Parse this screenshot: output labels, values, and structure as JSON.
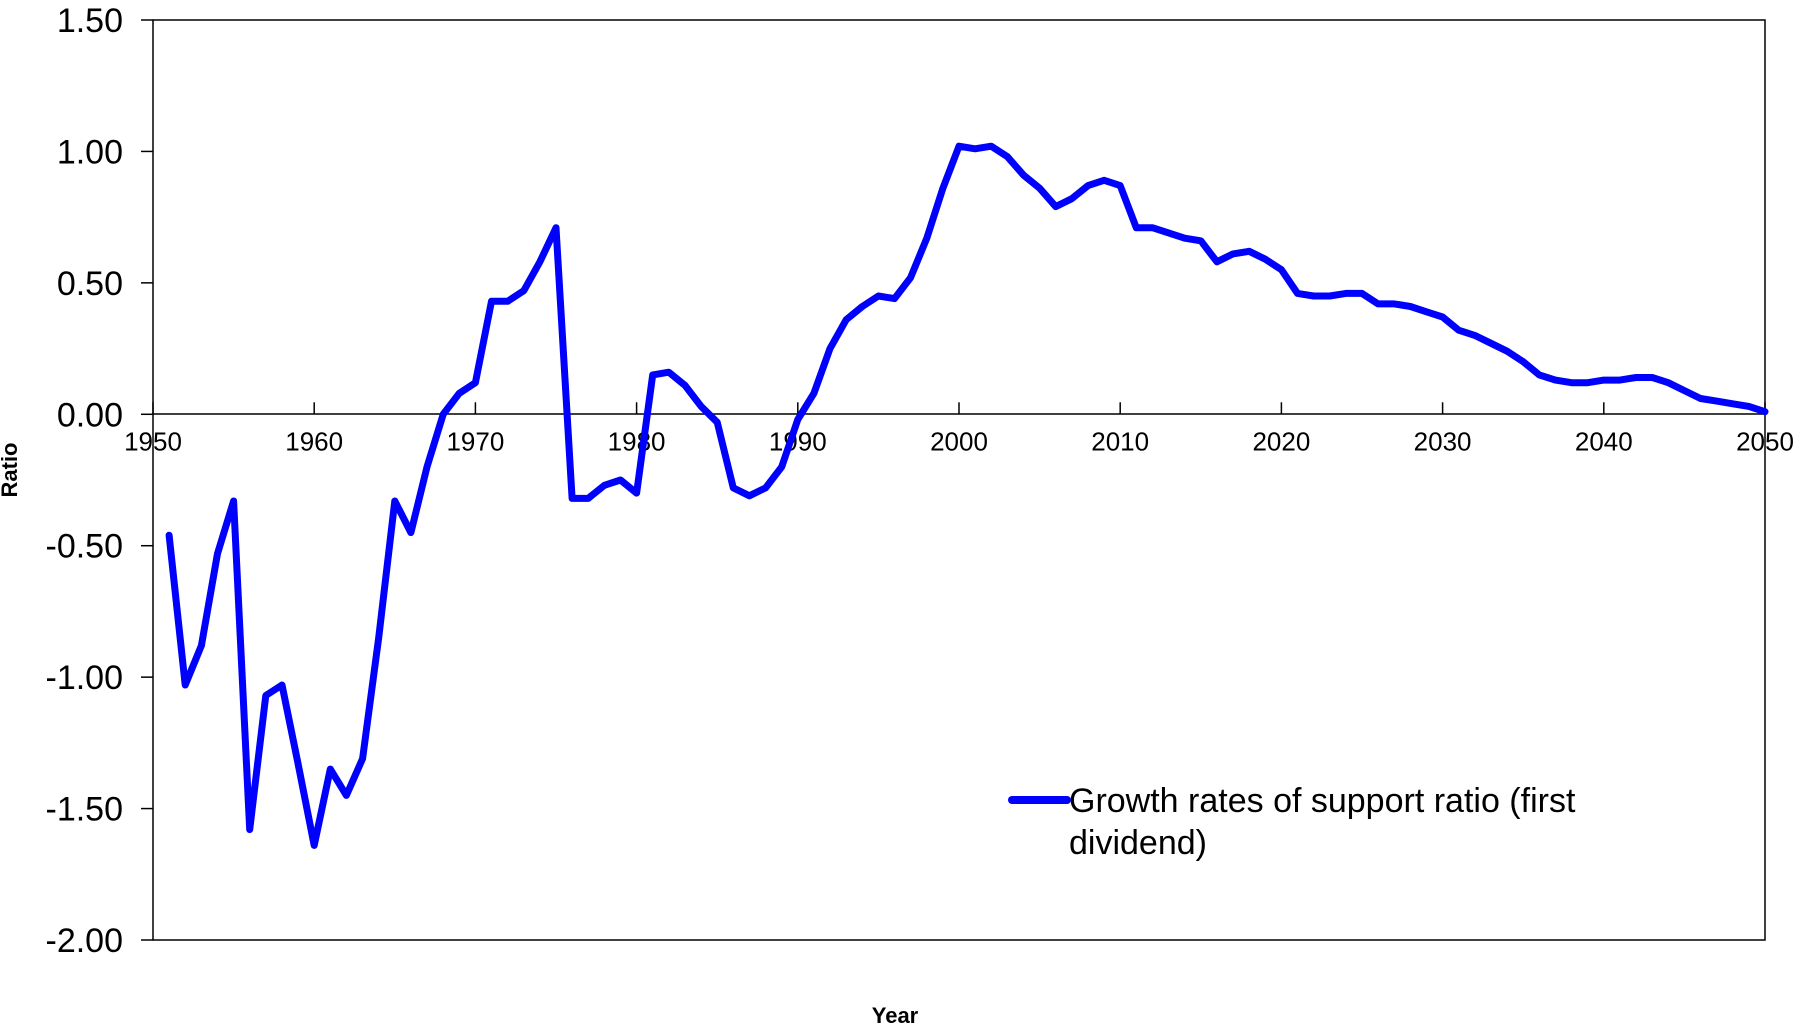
{
  "chart_data": {
    "type": "line",
    "title": "",
    "xlabel": "Year",
    "ylabel": "Ratio",
    "xlim": [
      1950,
      2050
    ],
    "ylim": [
      -2.0,
      1.5
    ],
    "y_ticks": [
      "1.50",
      "1.00",
      "0.50",
      "0.00",
      "-0.50",
      "-1.00",
      "-1.50",
      "-2.00"
    ],
    "y_tick_values": [
      1.5,
      1.0,
      0.5,
      0.0,
      -0.5,
      -1.0,
      -1.5,
      -2.0
    ],
    "x_ticks": [
      "1950",
      "1960",
      "1970",
      "1980",
      "1990",
      "2000",
      "2010",
      "2020",
      "2030",
      "2040",
      "2050"
    ],
    "x_tick_values": [
      1950,
      1960,
      1970,
      1980,
      1990,
      2000,
      2010,
      2020,
      2030,
      2040,
      2050
    ],
    "grid": false,
    "legend_position": "bottom-right",
    "series": [
      {
        "name": "Growth rates of support ratio (first dividend)",
        "color": "#0000ff",
        "x": [
          1951,
          1952,
          1953,
          1954,
          1955,
          1956,
          1957,
          1958,
          1959,
          1960,
          1961,
          1962,
          1963,
          1964,
          1965,
          1966,
          1967,
          1968,
          1969,
          1970,
          1971,
          1972,
          1973,
          1974,
          1975,
          1976,
          1977,
          1978,
          1979,
          1980,
          1981,
          1982,
          1983,
          1984,
          1985,
          1986,
          1987,
          1988,
          1989,
          1990,
          1991,
          1992,
          1993,
          1994,
          1995,
          1996,
          1997,
          1998,
          1999,
          2000,
          2001,
          2002,
          2003,
          2004,
          2005,
          2006,
          2007,
          2008,
          2009,
          2010,
          2011,
          2012,
          2013,
          2014,
          2015,
          2016,
          2017,
          2018,
          2019,
          2020,
          2021,
          2022,
          2023,
          2024,
          2025,
          2026,
          2027,
          2028,
          2029,
          2030,
          2031,
          2032,
          2033,
          2034,
          2035,
          2036,
          2037,
          2038,
          2039,
          2040,
          2041,
          2042,
          2043,
          2044,
          2045,
          2046,
          2047,
          2048,
          2049,
          2050
        ],
        "values": [
          -0.46,
          -1.03,
          -0.88,
          -0.53,
          -0.33,
          -1.58,
          -1.07,
          -1.03,
          -1.33,
          -1.64,
          -1.35,
          -1.45,
          -1.31,
          -0.85,
          -0.33,
          -0.45,
          -0.2,
          0.0,
          0.08,
          0.12,
          0.43,
          0.43,
          0.47,
          0.58,
          0.71,
          -0.32,
          -0.32,
          -0.27,
          -0.25,
          -0.3,
          0.15,
          0.16,
          0.11,
          0.03,
          -0.03,
          -0.28,
          -0.31,
          -0.28,
          -0.2,
          -0.02,
          0.08,
          0.25,
          0.36,
          0.41,
          0.45,
          0.44,
          0.52,
          0.67,
          0.86,
          1.02,
          1.01,
          1.02,
          0.98,
          0.91,
          0.86,
          0.79,
          0.82,
          0.87,
          0.89,
          0.87,
          0.71,
          0.71,
          0.69,
          0.67,
          0.66,
          0.58,
          0.61,
          0.62,
          0.59,
          0.55,
          0.46,
          0.45,
          0.45,
          0.46,
          0.46,
          0.42,
          0.42,
          0.41,
          0.39,
          0.37,
          0.32,
          0.3,
          0.27,
          0.24,
          0.2,
          0.15,
          0.13,
          0.12,
          0.12,
          0.13,
          0.13,
          0.14,
          0.14,
          0.12,
          0.09,
          0.06,
          0.05,
          0.04,
          0.03,
          0.01
        ]
      }
    ]
  }
}
